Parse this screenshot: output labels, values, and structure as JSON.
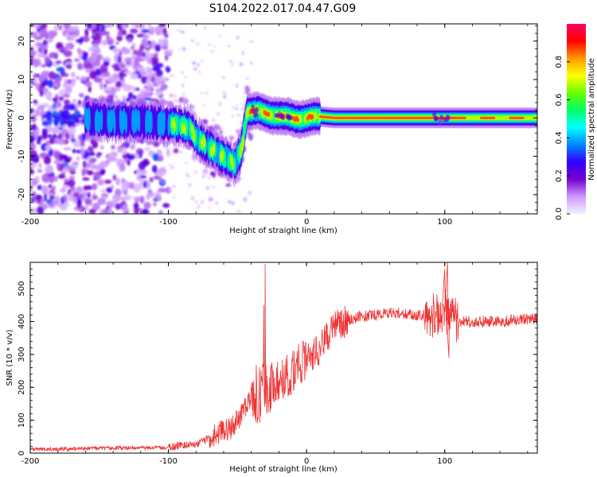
{
  "figure": {
    "title": "S104.2022.017.04.47.G09"
  },
  "chart_data": [
    {
      "type": "heatmap",
      "name": "spectrogram",
      "xlabel": "Height of straight line (km)",
      "ylabel": "Frequency (Hz)",
      "xlim": [
        -200,
        167
      ],
      "ylim": [
        -25,
        24.5
      ],
      "xticks": [
        -200,
        -100,
        0,
        100
      ],
      "yticks": [
        20,
        10,
        0,
        -10,
        -20
      ],
      "colorbar": {
        "label": "Normalized spectral amplitude",
        "ticks": [
          "0.0",
          "0.2",
          "0.4",
          "0.6",
          "0.8"
        ],
        "tick_values": [
          0.0,
          0.2,
          0.4,
          0.6,
          0.8
        ],
        "range": [
          0,
          1
        ],
        "colormap": [
          "#f5f0ff",
          "#cc99ff",
          "#7700cc",
          "#3300ff",
          "#0088ff",
          "#00ffff",
          "#00ff66",
          "#66ff00",
          "#ffff00",
          "#ff9900",
          "#ff0000",
          "#ff0066"
        ]
      },
      "signal_track": [
        {
          "x": -170,
          "f": 0.0
        },
        {
          "x": -150,
          "f": -0.5
        },
        {
          "x": -135,
          "f": -1.0
        },
        {
          "x": -120,
          "f": -1.0
        },
        {
          "x": -100,
          "f": -1.5
        },
        {
          "x": -92,
          "f": -2.0
        },
        {
          "x": -85,
          "f": -2.5
        },
        {
          "x": -80,
          "f": -5.0
        },
        {
          "x": -72,
          "f": -7.5
        },
        {
          "x": -65,
          "f": -9.0
        },
        {
          "x": -58,
          "f": -10.5
        },
        {
          "x": -52,
          "f": -12.0
        },
        {
          "x": -47,
          "f": -8.0
        },
        {
          "x": -43,
          "f": 1.5
        },
        {
          "x": -35,
          "f": 2.0
        },
        {
          "x": -25,
          "f": 0.5
        },
        {
          "x": -15,
          "f": 0.5
        },
        {
          "x": -5,
          "f": -0.5
        },
        {
          "x": 5,
          "f": 0.5
        },
        {
          "x": 20,
          "f": 0.0
        },
        {
          "x": 60,
          "f": 0.0
        },
        {
          "x": 100,
          "f": 0.0
        },
        {
          "x": 167,
          "f": 0.0
        }
      ],
      "series": [
        {
          "name": "noise_region",
          "x_range": [
            -200,
            -100
          ],
          "f_range": [
            -25,
            24.5
          ],
          "amplitude": 0.1
        },
        {
          "name": "band",
          "x_range": [
            -160,
            167
          ],
          "amplitude": 0.5
        }
      ]
    },
    {
      "type": "line",
      "name": "snr",
      "xlabel": "Height of straight line (km)",
      "ylabel": "SNR (10 * v/v)",
      "xlim": [
        -200,
        167
      ],
      "ylim": [
        0,
        580
      ],
      "xticks": [
        -200,
        -100,
        0,
        100
      ],
      "yticks": [
        0,
        100,
        200,
        300,
        400,
        500
      ],
      "line_color": "#ee3333",
      "series": [
        {
          "x": [
            -200,
            -180,
            -160,
            -140,
            -120,
            -100,
            -90,
            -80,
            -70,
            -65,
            -60,
            -55,
            -50,
            -45,
            -40,
            -35,
            -30,
            -25,
            -20,
            -15,
            -10,
            -5,
            0,
            5,
            10,
            15,
            20,
            25,
            30,
            40,
            50,
            60,
            70,
            80,
            85,
            90,
            95,
            100,
            103,
            105,
            110,
            120,
            140,
            167
          ],
          "y": [
            12,
            12,
            14,
            16,
            16,
            17,
            25,
            28,
            45,
            60,
            70,
            75,
            100,
            130,
            175,
            180,
            190,
            210,
            220,
            230,
            250,
            270,
            290,
            300,
            320,
            350,
            380,
            395,
            405,
            415,
            420,
            425,
            425,
            420,
            420,
            420,
            425,
            430,
            420,
            410,
            400,
            400,
            400,
            410
          ],
          "spikes": [
            {
              "x": -30,
              "ymax": 575
            },
            {
              "x": -31,
              "ymax": 450
            },
            {
              "x": 100,
              "ymax": 560
            },
            {
              "x": 102,
              "ymax": 580
            },
            {
              "x": 103,
              "ymax": 290
            }
          ]
        }
      ]
    }
  ]
}
